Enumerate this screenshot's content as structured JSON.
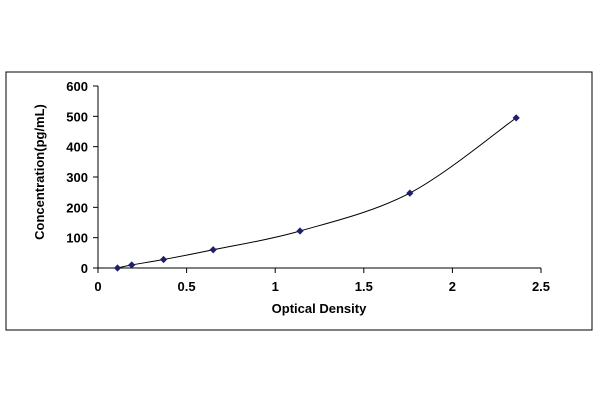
{
  "chart_data": {
    "type": "scatter",
    "title": "",
    "xlabel": "Optical Density",
    "ylabel": "Concentration(pg/mL)",
    "xlim": [
      0,
      2.5
    ],
    "ylim": [
      0,
      600
    ],
    "x_ticks": [
      "0",
      "0.5",
      "1",
      "1.5",
      "2",
      "2.5"
    ],
    "y_ticks": [
      "0",
      "100",
      "200",
      "300",
      "400",
      "500",
      "600"
    ],
    "grid": false,
    "legend": "none",
    "series": [
      {
        "points": [
          {
            "x": 0.11,
            "y": 0
          },
          {
            "x": 0.19,
            "y": 10
          },
          {
            "x": 0.37,
            "y": 28
          },
          {
            "x": 0.65,
            "y": 60
          },
          {
            "x": 1.14,
            "y": 122
          },
          {
            "x": 1.76,
            "y": 247
          },
          {
            "x": 2.36,
            "y": 495
          }
        ],
        "trendline": "smooth-curve",
        "marker": "diamond",
        "color": "#1f1f6e"
      }
    ],
    "line_color": "#000000"
  }
}
